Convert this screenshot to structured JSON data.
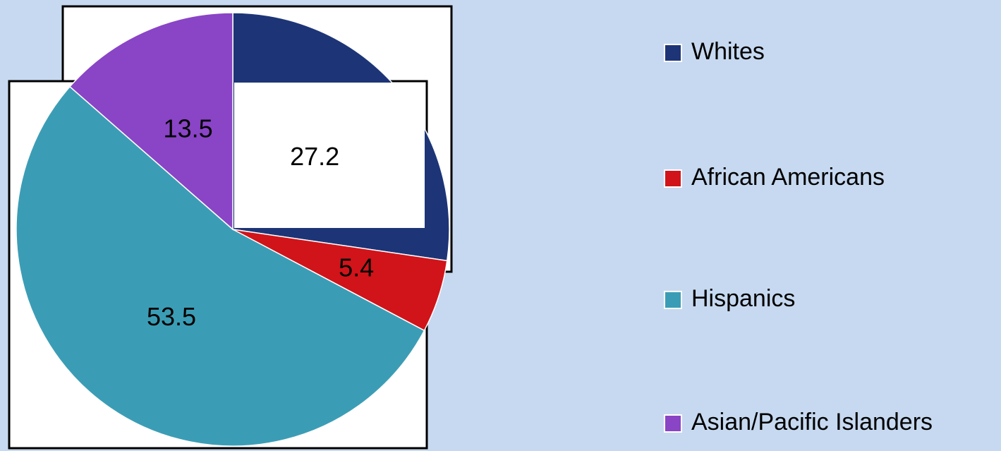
{
  "chart_data": {
    "type": "pie",
    "categories": [
      "Whites",
      "African Americans",
      "Hispanics",
      "Asian/Pacific Islanders"
    ],
    "values": [
      27.2,
      5.4,
      53.5,
      13.5
    ],
    "colors": [
      "#1d3577",
      "#d0141a",
      "#3b9db5",
      "#8a44c6"
    ],
    "legend": "right"
  }
}
